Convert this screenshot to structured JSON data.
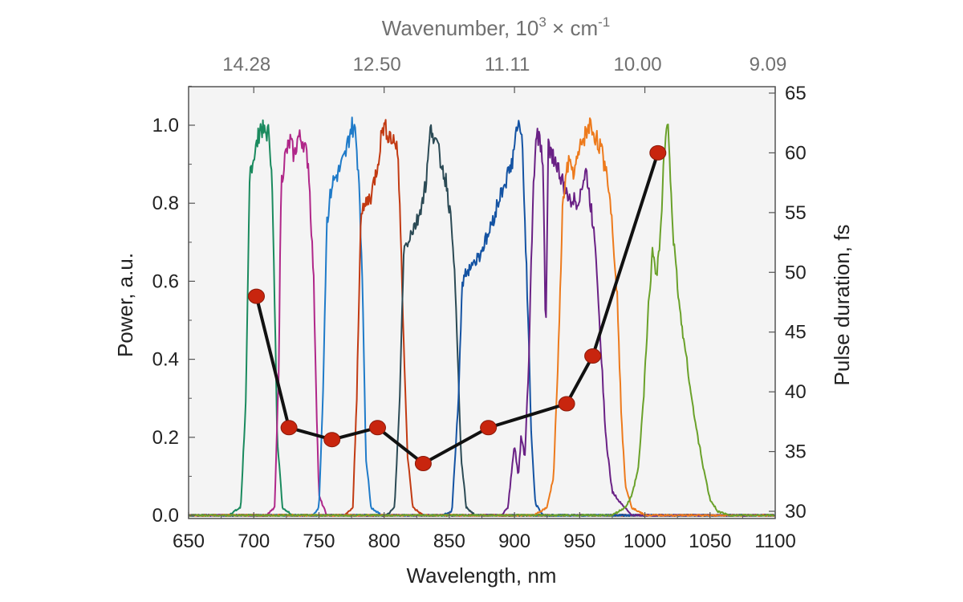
{
  "chart_data": {
    "type": "line",
    "xlabel": "Wavelength, nm",
    "ylabel_left": "Power, a.u.",
    "ylabel_right": "Pulse duration, fs",
    "xlabel_top": {
      "base": "Wavenumber, 10",
      "exp1": "3",
      "mid": " × cm",
      "exp2": "-1"
    },
    "xlim": [
      650,
      1100
    ],
    "ylim_left": [
      0,
      1.1
    ],
    "ylim_right": [
      30,
      65
    ],
    "x_ticks": [
      "650",
      "700",
      "750",
      "800",
      "850",
      "900",
      "950",
      "1000",
      "1050",
      "1100"
    ],
    "y_left_ticks": [
      "0.0",
      "0.2",
      "0.4",
      "0.6",
      "0.8",
      "1.0"
    ],
    "y_right_ticks": [
      "30",
      "35",
      "40",
      "45",
      "50",
      "55",
      "60",
      "65"
    ],
    "top_ticks": [
      {
        "label": "14.28",
        "wavelength": 700
      },
      {
        "label": "12.50",
        "wavelength": 800
      },
      {
        "label": "11.11",
        "wavelength": 900
      },
      {
        "label": "10.00",
        "wavelength": 1000
      },
      {
        "label": "9.09",
        "wavelength": 1100
      }
    ],
    "grid": false,
    "background": "#f4f4f4",
    "series": [
      {
        "color": "#1a8a5e",
        "center": 705,
        "points": [
          [
            680,
            0
          ],
          [
            690,
            0.02
          ],
          [
            694,
            0.3
          ],
          [
            697,
            0.88
          ],
          [
            700,
            0.92
          ],
          [
            703,
            0.96
          ],
          [
            705,
            1.0
          ],
          [
            708,
            0.98
          ],
          [
            712,
            0.98
          ],
          [
            714,
            0.85
          ],
          [
            716,
            0.55
          ],
          [
            718,
            0.2
          ],
          [
            722,
            0.02
          ],
          [
            730,
            0
          ]
        ]
      },
      {
        "color": "#b02789",
        "center": 735,
        "points": [
          [
            710,
            0
          ],
          [
            716,
            0.02
          ],
          [
            719,
            0.35
          ],
          [
            721,
            0.85
          ],
          [
            724,
            0.92
          ],
          [
            728,
            0.96
          ],
          [
            731,
            0.92
          ],
          [
            734,
            0.97
          ],
          [
            738,
            0.96
          ],
          [
            742,
            0.9
          ],
          [
            746,
            0.6
          ],
          [
            748,
            0.3
          ],
          [
            750,
            0.05
          ],
          [
            756,
            0
          ]
        ]
      },
      {
        "color": "#1f7bc9",
        "center": 766,
        "points": [
          [
            745,
            0
          ],
          [
            750,
            0.02
          ],
          [
            753,
            0.3
          ],
          [
            756,
            0.75
          ],
          [
            760,
            0.85
          ],
          [
            765,
            0.88
          ],
          [
            770,
            0.92
          ],
          [
            775,
            1.0
          ],
          [
            778,
            0.98
          ],
          [
            781,
            0.85
          ],
          [
            784,
            0.5
          ],
          [
            786,
            0.15
          ],
          [
            790,
            0.02
          ],
          [
            798,
            0
          ]
        ]
      },
      {
        "color": "#c23a12",
        "center": 796,
        "points": [
          [
            770,
            0
          ],
          [
            776,
            0.02
          ],
          [
            779,
            0.3
          ],
          [
            782,
            0.76
          ],
          [
            786,
            0.8
          ],
          [
            790,
            0.82
          ],
          [
            795,
            0.9
          ],
          [
            799,
            1.0
          ],
          [
            805,
            0.97
          ],
          [
            810,
            0.95
          ],
          [
            812,
            0.8
          ],
          [
            815,
            0.45
          ],
          [
            818,
            0.15
          ],
          [
            822,
            0.02
          ],
          [
            830,
            0
          ]
        ]
      },
      {
        "color": "#2b4a55",
        "center": 836,
        "points": [
          [
            802,
            0
          ],
          [
            808,
            0.02
          ],
          [
            812,
            0.3
          ],
          [
            815,
            0.68
          ],
          [
            820,
            0.72
          ],
          [
            826,
            0.76
          ],
          [
            832,
            0.85
          ],
          [
            836,
            1.0
          ],
          [
            841,
            0.94
          ],
          [
            848,
            0.85
          ],
          [
            853,
            0.7
          ],
          [
            856,
            0.45
          ],
          [
            859,
            0.15
          ],
          [
            863,
            0.02
          ],
          [
            870,
            0
          ]
        ]
      },
      {
        "color": "#1453a3",
        "center": 885,
        "points": [
          [
            845,
            0
          ],
          [
            852,
            0.01
          ],
          [
            857,
            0.3
          ],
          [
            860,
            0.6
          ],
          [
            866,
            0.64
          ],
          [
            872,
            0.66
          ],
          [
            880,
            0.72
          ],
          [
            890,
            0.83
          ],
          [
            898,
            0.9
          ],
          [
            902,
            1.0
          ],
          [
            906,
            0.96
          ],
          [
            910,
            0.55
          ],
          [
            913,
            0.2
          ],
          [
            916,
            0.03
          ],
          [
            922,
            0
          ]
        ]
      },
      {
        "color": "#6a2185",
        "center": 950,
        "points": [
          [
            890,
            0
          ],
          [
            895,
            0.02
          ],
          [
            898,
            0.12
          ],
          [
            900,
            0.18
          ],
          [
            903,
            0.1
          ],
          [
            905,
            0.2
          ],
          [
            908,
            0.15
          ],
          [
            911,
            0.4
          ],
          [
            914,
            0.8
          ],
          [
            917,
            0.98
          ],
          [
            920,
            0.95
          ],
          [
            922,
            0.9
          ],
          [
            924,
            0.45
          ],
          [
            926,
            0.95
          ],
          [
            932,
            0.9
          ],
          [
            940,
            0.82
          ],
          [
            948,
            0.8
          ],
          [
            955,
            0.88
          ],
          [
            962,
            0.7
          ],
          [
            966,
            0.45
          ],
          [
            970,
            0.2
          ],
          [
            975,
            0.06
          ],
          [
            982,
            0.03
          ],
          [
            990,
            0
          ]
        ]
      },
      {
        "color": "#ed7a1c",
        "center": 955,
        "points": [
          [
            915,
            0
          ],
          [
            925,
            0.02
          ],
          [
            930,
            0.1
          ],
          [
            934,
            0.45
          ],
          [
            937,
            0.8
          ],
          [
            941,
            0.9
          ],
          [
            946,
            0.88
          ],
          [
            952,
            0.96
          ],
          [
            958,
            1.0
          ],
          [
            965,
            0.95
          ],
          [
            971,
            0.88
          ],
          [
            975,
            0.75
          ],
          [
            979,
            0.55
          ],
          [
            982,
            0.25
          ],
          [
            985,
            0.08
          ],
          [
            990,
            0.02
          ],
          [
            1000,
            0
          ]
        ]
      },
      {
        "color": "#6aa12a",
        "center": 1012,
        "points": [
          [
            975,
            0
          ],
          [
            985,
            0.02
          ],
          [
            990,
            0.05
          ],
          [
            995,
            0.12
          ],
          [
            999,
            0.3
          ],
          [
            1003,
            0.55
          ],
          [
            1006,
            0.68
          ],
          [
            1009,
            0.62
          ],
          [
            1012,
            0.72
          ],
          [
            1015,
            0.94
          ],
          [
            1018,
            1.0
          ],
          [
            1022,
            0.7
          ],
          [
            1027,
            0.52
          ],
          [
            1032,
            0.4
          ],
          [
            1038,
            0.25
          ],
          [
            1045,
            0.12
          ],
          [
            1050,
            0.04
          ],
          [
            1056,
            0.01
          ],
          [
            1065,
            0
          ]
        ]
      }
    ],
    "pulse_duration": {
      "x": [
        702,
        727,
        760,
        795,
        830,
        880,
        940,
        960,
        1010
      ],
      "y": [
        48,
        37,
        36,
        37,
        34,
        37,
        39,
        43,
        60
      ]
    }
  }
}
